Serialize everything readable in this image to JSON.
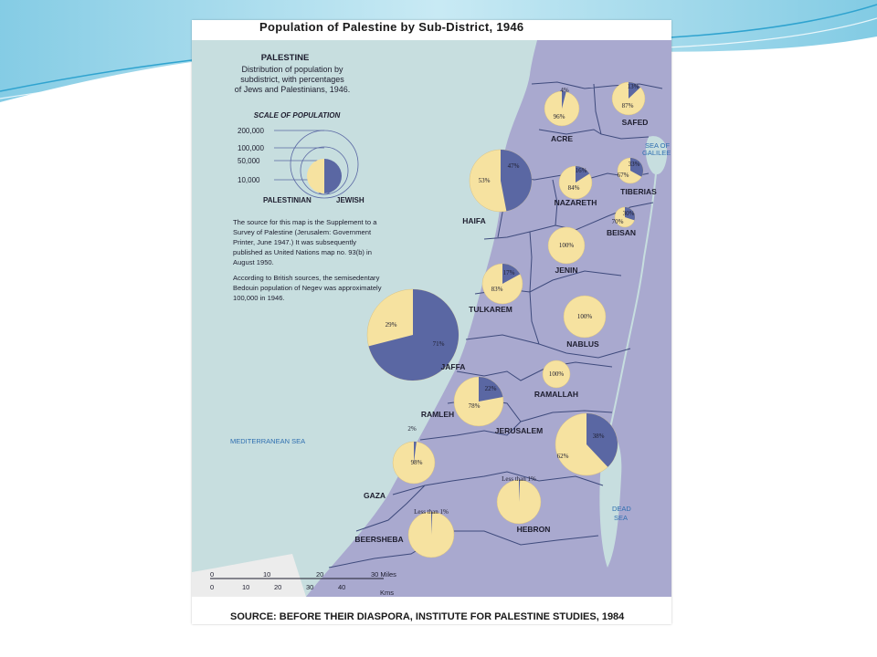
{
  "title": "Population of Palestine by Sub-District, 1946",
  "source": "SOURCE: BEFORE THEIR DIASPORA, INSTITUTE FOR PALESTINE STUDIES, 1984",
  "legend": {
    "heading": "PALESTINE",
    "lines": [
      "Distribution of population by",
      "subdistrict, with percentages",
      "of Jews and Palestinians, 1946."
    ],
    "scale_title": "SCALE OF POPULATION",
    "scale_values": [
      "200,000",
      "100,000",
      "50,000",
      "10,000"
    ],
    "palestinian_label": "PALESTINIAN",
    "jewish_label": "JEWISH"
  },
  "notes": {
    "note1": [
      "The source for this map is the Supplement to a",
      "Survey of Palestine (Jerusalem: Government",
      "Printer, June 1947.) It was subsequently",
      "published as United Nations map no. 93(b) in",
      "August 1950."
    ],
    "note2": [
      "According to British sources, the semisedentary",
      "Bedouin population of Negev was approximately",
      "100,000 in 1946."
    ]
  },
  "seas": {
    "med": "MEDITERRANEAN SEA",
    "galilee": [
      "SEA OF",
      "GALILEE"
    ],
    "dead": [
      "DEAD",
      "SEA"
    ]
  },
  "scalebar": {
    "miles": [
      "0",
      "10",
      "20",
      "30 Miles"
    ],
    "kms": [
      "0",
      "10",
      "20",
      "30",
      "40",
      "Kms"
    ]
  },
  "colors": {
    "jewish": "#5a67a3",
    "palestinian": "#f6e2a0",
    "land": "#a9a9cf",
    "sea": "#c7dedf"
  },
  "districts": [
    {
      "name": "ACRE",
      "jewish_pct": "4%",
      "palestinian_pct": "96%",
      "jewish_share": 0.04
    },
    {
      "name": "SAFED",
      "jewish_pct": "13%",
      "palestinian_pct": "87%",
      "jewish_share": 0.13
    },
    {
      "name": "HAIFA",
      "jewish_pct": "47%",
      "palestinian_pct": "53%",
      "jewish_share": 0.47
    },
    {
      "name": "NAZARETH",
      "jewish_pct": "16%",
      "palestinian_pct": "84%",
      "jewish_share": 0.16
    },
    {
      "name": "TIBERIAS",
      "jewish_pct": "33%",
      "palestinian_pct": "67%",
      "jewish_share": 0.33
    },
    {
      "name": "BEISAN",
      "jewish_pct": "30%",
      "palestinian_pct": "70%",
      "jewish_share": 0.3
    },
    {
      "name": "JENIN",
      "jewish_pct": "",
      "palestinian_pct": "100%",
      "jewish_share": 0
    },
    {
      "name": "TULKAREM",
      "jewish_pct": "17%",
      "palestinian_pct": "83%",
      "jewish_share": 0.17
    },
    {
      "name": "NABLUS",
      "jewish_pct": "",
      "palestinian_pct": "100%",
      "jewish_share": 0
    },
    {
      "name": "JAFFA",
      "jewish_pct": "71%",
      "palestinian_pct": "29%",
      "jewish_share": 0.71
    },
    {
      "name": "RAMALLAH",
      "jewish_pct": "",
      "palestinian_pct": "100%",
      "jewish_share": 0
    },
    {
      "name": "RAMLEH",
      "jewish_pct": "22%",
      "palestinian_pct": "78%",
      "jewish_share": 0.22
    },
    {
      "name": "JERUSALEM",
      "jewish_pct": "38%",
      "palestinian_pct": "62%",
      "jewish_share": 0.38
    },
    {
      "name": "GAZA",
      "jewish_pct": "2%",
      "palestinian_pct": "98%",
      "jewish_share": 0.02
    },
    {
      "name": "HEBRON",
      "jewish_pct": "Less than 1%",
      "palestinian_pct": "",
      "jewish_share": 0.008
    },
    {
      "name": "BEERSHEBA",
      "jewish_pct": "Less than 1%",
      "palestinian_pct": "",
      "jewish_share": 0.008
    }
  ]
}
